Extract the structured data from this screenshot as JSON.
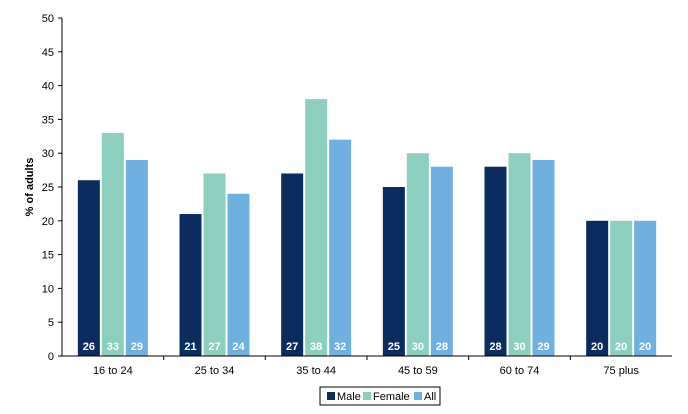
{
  "chart_data": {
    "type": "bar",
    "categories": [
      "16 to 24",
      "25 to 34",
      "35 to 44",
      "45 to 59",
      "60 to 74",
      "75 plus"
    ],
    "series": [
      {
        "name": "Male",
        "values": [
          26,
          21,
          27,
          25,
          28,
          20
        ],
        "color": "#0b2c5f"
      },
      {
        "name": "Female",
        "values": [
          33,
          27,
          38,
          30,
          30,
          20
        ],
        "color": "#8ccfbf"
      },
      {
        "name": "All",
        "values": [
          29,
          24,
          32,
          28,
          29,
          20
        ],
        "color": "#6fb0e0"
      }
    ],
    "data_labels": [
      [
        "26",
        "21",
        "27",
        "25",
        "28",
        "20"
      ],
      [
        "33",
        "27",
        "38",
        "30",
        "30",
        "20"
      ],
      [
        "29",
        "24",
        "32",
        "28",
        "29",
        "20"
      ]
    ],
    "ylabel": "% of adults",
    "ylim": [
      0,
      50
    ],
    "yticks": [
      "0",
      "5",
      "10",
      "15",
      "20",
      "25",
      "30",
      "35",
      "40",
      "45",
      "50"
    ],
    "grid": false,
    "legend_position": "bottom-right"
  }
}
